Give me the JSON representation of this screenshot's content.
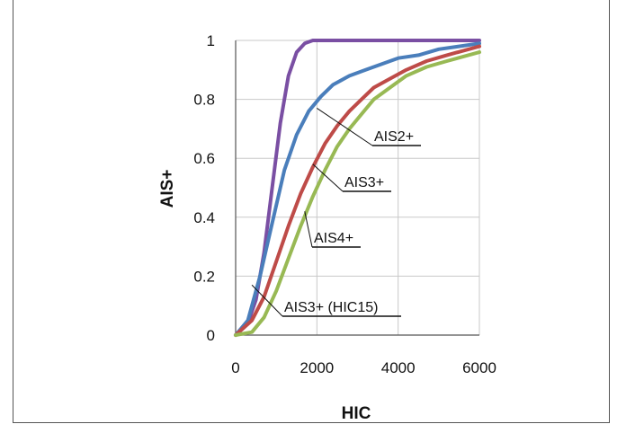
{
  "chart_data": {
    "type": "line",
    "xlabel": "HIC",
    "ylabel": "AIS+",
    "xlim": [
      0,
      6000
    ],
    "ylim": [
      0,
      1
    ],
    "x_ticks": [
      "0",
      "2000",
      "4000",
      "6000"
    ],
    "y_ticks": [
      "0",
      "0.2",
      "0.4",
      "0.6",
      "0.8",
      "1"
    ],
    "grid": true,
    "legend": "none (callout labels on curves)",
    "series": [
      {
        "name": "AIS3+ (HIC15)",
        "color": "#7a4fa3",
        "x": [
          0,
          300,
          500,
          700,
          900,
          1100,
          1300,
          1500,
          1700,
          1900,
          2200,
          2600,
          3000,
          4000,
          6000
        ],
        "y": [
          0,
          0.04,
          0.12,
          0.28,
          0.5,
          0.72,
          0.88,
          0.96,
          0.99,
          1,
          1,
          1,
          1,
          1,
          1
        ]
      },
      {
        "name": "AIS2+",
        "color": "#4a7ebb",
        "x": [
          0,
          300,
          600,
          900,
          1200,
          1500,
          1800,
          2100,
          2400,
          2800,
          3200,
          3600,
          4000,
          4500,
          5000,
          5500,
          6000
        ],
        "y": [
          0,
          0.05,
          0.2,
          0.38,
          0.56,
          0.68,
          0.76,
          0.81,
          0.85,
          0.88,
          0.9,
          0.92,
          0.94,
          0.95,
          0.97,
          0.98,
          0.99
        ]
      },
      {
        "name": "AIS3+",
        "color": "#be4b48",
        "x": [
          0,
          400,
          700,
          1000,
          1300,
          1600,
          1900,
          2200,
          2500,
          2800,
          3100,
          3400,
          3800,
          4200,
          4700,
          5200,
          6000
        ],
        "y": [
          0,
          0.05,
          0.13,
          0.25,
          0.37,
          0.48,
          0.57,
          0.65,
          0.71,
          0.76,
          0.8,
          0.84,
          0.87,
          0.9,
          0.93,
          0.95,
          0.98
        ]
      },
      {
        "name": "AIS4+",
        "color": "#98b954",
        "x": [
          0,
          400,
          700,
          1000,
          1300,
          1600,
          1900,
          2200,
          2500,
          2800,
          3100,
          3400,
          3800,
          4200,
          4700,
          5200,
          6000
        ],
        "y": [
          0,
          0.01,
          0.06,
          0.15,
          0.26,
          0.37,
          0.47,
          0.56,
          0.64,
          0.7,
          0.75,
          0.8,
          0.84,
          0.88,
          0.91,
          0.93,
          0.96
        ]
      }
    ],
    "annotations": [
      "AIS2+",
      "AIS3+",
      "AIS4+",
      "AIS3+ (HIC15)"
    ]
  }
}
